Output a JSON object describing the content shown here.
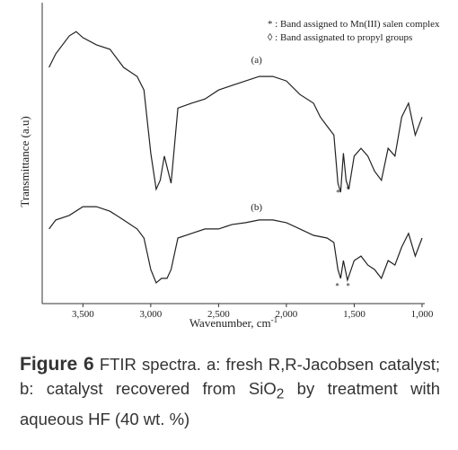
{
  "chart_data": {
    "type": "line",
    "x_label": {
      "text": "Wavenumber, cm",
      "sup": "-1"
    },
    "y_label": "Transmittance (a.u)",
    "xlim": [
      3800,
      980
    ],
    "ylim": [
      0,
      100
    ],
    "xticks": [
      {
        "value": 3500,
        "label": "3,500"
      },
      {
        "value": 3000,
        "label": "3,000"
      },
      {
        "value": 2500,
        "label": "2,500"
      },
      {
        "value": 2000,
        "label": "2,000"
      },
      {
        "value": 1500,
        "label": "1,500"
      },
      {
        "value": 1000,
        "label": "1,000"
      }
    ],
    "series": [
      {
        "name": "(a)",
        "color": "#222222",
        "x": [
          3750,
          3700,
          3600,
          3550,
          3500,
          3400,
          3300,
          3200,
          3100,
          3050,
          3000,
          2960,
          2930,
          2900,
          2850,
          2800,
          2700,
          2600,
          2500,
          2400,
          2300,
          2200,
          2100,
          2000,
          1900,
          1800,
          1750,
          1700,
          1650,
          1620,
          1600,
          1580,
          1560,
          1540,
          1500,
          1450,
          1400,
          1350,
          1300,
          1250,
          1200,
          1150,
          1100,
          1050,
          1000
        ],
        "values": [
          78.5,
          83,
          89,
          90.4,
          88.4,
          86,
          84.5,
          78.5,
          75.5,
          71,
          50,
          38,
          41,
          49,
          40,
          65,
          66.6,
          68,
          71,
          72.5,
          74,
          75.5,
          75.5,
          74,
          69.5,
          66.6,
          62,
          59,
          56,
          40,
          37,
          50,
          41,
          38,
          49,
          51.6,
          49,
          44,
          41,
          51.6,
          49,
          62,
          66.6,
          56,
          62
        ]
      },
      {
        "name": "(b)",
        "color": "#222222",
        "x": [
          3750,
          3700,
          3600,
          3500,
          3400,
          3300,
          3200,
          3100,
          3050,
          3000,
          2960,
          2920,
          2880,
          2850,
          2800,
          2700,
          2600,
          2500,
          2400,
          2300,
          2200,
          2100,
          2000,
          1900,
          1800,
          1700,
          1650,
          1620,
          1600,
          1580,
          1550,
          1500,
          1450,
          1400,
          1350,
          1300,
          1250,
          1200,
          1150,
          1100,
          1050,
          1000
        ],
        "values": [
          24.8,
          27.8,
          29.3,
          32.2,
          32.2,
          30.7,
          27.8,
          24.8,
          21.8,
          11.3,
          6.9,
          8.4,
          8.4,
          11.3,
          21.8,
          23.3,
          24.8,
          24.8,
          26.3,
          26.9,
          27.8,
          27.8,
          26.9,
          24.8,
          22.7,
          21.8,
          20.3,
          11.3,
          8.4,
          14.3,
          7.8,
          14.3,
          15.8,
          12.8,
          11.3,
          8.4,
          14.3,
          12.8,
          18.8,
          23.3,
          15.8,
          21.8
        ]
      }
    ],
    "series_label_pos": [
      {
        "x": 2220,
        "y": 80
      },
      {
        "x": 2220,
        "y": 31
      }
    ],
    "annotations": [
      {
        "text": "*",
        "x": 1620,
        "y": 36
      },
      {
        "text": "*",
        "x": 1545,
        "y": 37
      },
      {
        "text": "*",
        "x": 1625,
        "y": 5
      },
      {
        "text": "*",
        "x": 1545,
        "y": 5
      }
    ],
    "legend": [
      "* : Band assigned to Mn(III) salen complex",
      "◊ : Band assignated to propyl groups"
    ],
    "caption": {
      "label": "Figure 6",
      "parts": [
        "FTIR spectra. a: fresh R,R-Jacobsen catalyst; b: catalyst recovered from SiO",
        "2",
        " by treatment with aqueous HF (40 wt. %)"
      ]
    }
  }
}
